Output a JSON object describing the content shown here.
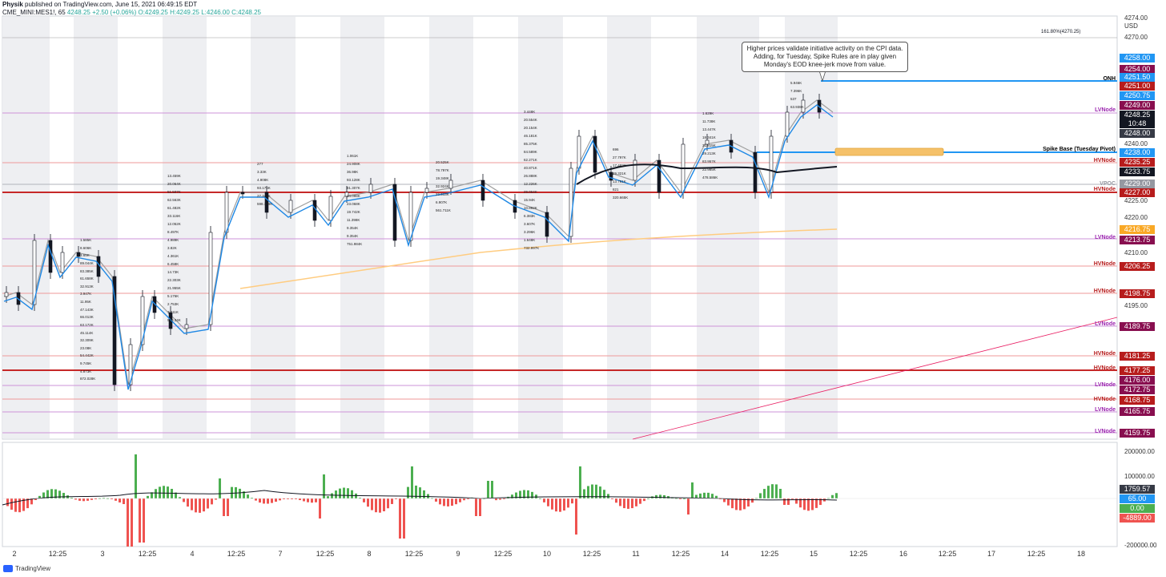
{
  "header": {
    "publisher": "Physik",
    "published_text": "published on TradingView.com, June 15, 2021 06:49:15 EDT",
    "symbol": "CME_MINI:MES1!, 65",
    "last": "4248.25",
    "change": "+2.50 (+0.06%)",
    "open": "O:4249.25",
    "high": "H:4249.25",
    "low": "L:4246.00",
    "close": "C:4248.25"
  },
  "price_axis": {
    "currency": "USD",
    "ticks": [
      "4270.00",
      "4240.00",
      "4225.00",
      "4220.00",
      "4210.00",
      "4195.00"
    ],
    "top_tick": "4274.00"
  },
  "fib_label": "161.80%(4270.25)",
  "annotation": "Higher prices validate initiative activity on the CPI data. Adding, for Tuesday, Spike Rules are in play given Monday's EOD knee-jerk move from value.",
  "levels": [
    {
      "name": "ONH",
      "color": "#000000"
    },
    {
      "name": "LVNode",
      "color": "#9c27b0"
    },
    {
      "name": "Spike Base (Tuesday Pivot)",
      "color": "#000000"
    },
    {
      "name": "HVNode",
      "color": "#b71c1c"
    },
    {
      "name": "VPOC",
      "color": "#9598a1"
    },
    {
      "name": "HVNode",
      "color": "#b71c1c"
    },
    {
      "name": "LVNode",
      "color": "#9c27b0"
    },
    {
      "name": "HVNode",
      "color": "#b71c1c"
    },
    {
      "name": "HVNode",
      "color": "#b71c1c"
    },
    {
      "name": "LVNode",
      "color": "#9c27b0"
    },
    {
      "name": "HVNode",
      "color": "#b71c1c"
    },
    {
      "name": "HVNode",
      "color": "#b71c1c"
    },
    {
      "name": "LVNode",
      "color": "#9c27b0"
    },
    {
      "name": "HVNode",
      "color": "#b71c1c"
    },
    {
      "name": "LVNode",
      "color": "#9c27b0"
    },
    {
      "name": "LVNode",
      "color": "#9c27b0"
    }
  ],
  "price_tags": [
    {
      "text": "4258.00",
      "color": "#2196f3"
    },
    {
      "text": "4254.00",
      "color": "#880e4f"
    },
    {
      "text": "4251.50",
      "color": "#2196f3"
    },
    {
      "text": "4251.00",
      "color": "#b71c1c"
    },
    {
      "text": "4250.75",
      "color": "#2196f3"
    },
    {
      "text": "4249.00",
      "color": "#880e4f"
    },
    {
      "text": "4248.25",
      "color": "#131722"
    },
    {
      "text": "10:48",
      "color": "#131722"
    },
    {
      "text": "4248.00",
      "color": "#363a45"
    },
    {
      "text": "4238.00",
      "color": "#2196f3"
    },
    {
      "text": "4235.25",
      "color": "#b71c1c"
    },
    {
      "text": "4233.75",
      "color": "#131722"
    },
    {
      "text": "4229.00",
      "color": "#9598a1"
    },
    {
      "text": "4227.00",
      "color": "#b71c1c"
    },
    {
      "text": "4216.75",
      "color": "#f9a825"
    },
    {
      "text": "4213.75",
      "color": "#880e4f"
    },
    {
      "text": "4206.25",
      "color": "#b71c1c"
    },
    {
      "text": "4198.75",
      "color": "#b71c1c"
    },
    {
      "text": "4189.75",
      "color": "#880e4f"
    },
    {
      "text": "4181.25",
      "color": "#b71c1c"
    },
    {
      "text": "4177.25",
      "color": "#b71c1c"
    },
    {
      "text": "4176.00",
      "color": "#880e4f"
    },
    {
      "text": "4172.75",
      "color": "#880e4f"
    },
    {
      "text": "4168.75",
      "color": "#b71c1c"
    },
    {
      "text": "4165.75",
      "color": "#880e4f"
    },
    {
      "text": "4159.75",
      "color": "#880e4f"
    }
  ],
  "volume_axis": [
    "200000.00",
    "100000.00",
    "-200000.00"
  ],
  "volume_tags": [
    {
      "text": "1759.57",
      "color": "#363a45"
    },
    {
      "text": "65.00",
      "color": "#2196f3"
    },
    {
      "text": "0.00",
      "color": "#4caf50"
    },
    {
      "text": "-4889.00",
      "color": "#ef5350"
    }
  ],
  "time_axis": [
    "2",
    "12:25",
    "3",
    "12:25",
    "4",
    "12:25",
    "7",
    "12:25",
    "8",
    "12:25",
    "9",
    "12:25",
    "10",
    "12:25",
    "11",
    "12:25",
    "14",
    "12:25",
    "15",
    "12:25",
    "16",
    "12:25",
    "17",
    "12:25",
    "18"
  ],
  "volume_profile_labels": [
    [
      "1.585K",
      "8.606K",
      "3.65K",
      "89.044K",
      "83.385K",
      "61.658K",
      "32.913K",
      "3.947K",
      "11.95K",
      "47.143K",
      "66.013K",
      "63.172K",
      "45.114K",
      "32.309K",
      "23.08K",
      "54.442K",
      "9.745K",
      "4.873K",
      "872.028K"
    ],
    [
      "13.459K",
      "20.064K",
      "51.507K",
      "62.563K",
      "61.482K",
      "33.116K",
      "12.052K",
      "8.497K",
      "4.989K",
      "3.82K",
      "4.361K",
      "6.458K",
      "14.73K",
      "22.303K",
      "21.955K",
      "5.176K",
      "2.753K",
      "7.211K",
      "570.34K"
    ],
    [
      "277",
      "3.33K",
      "4.908K",
      "93.176K",
      "27.344K",
      "598.108K"
    ],
    [
      "1.061K",
      "24.908K",
      "36.98K",
      "93.128K",
      "81.307K",
      "24.098K",
      "23.068K",
      "19.742K",
      "11.398K",
      "9.354K",
      "9.354K",
      "751.984K"
    ],
    [
      "20.525K",
      "78.797K",
      "19.348K",
      "32.924K",
      "22.513K",
      "6.907K",
      "561.711K"
    ],
    [
      "3.448K",
      "20.554K",
      "20.154K",
      "46.181K",
      "85.375K",
      "84.589K",
      "62.271K",
      "40.871K",
      "26.888K",
      "12.226K",
      "29.064K",
      "15.94K",
      "10.892K",
      "6.383K",
      "3.607K",
      "3.296K",
      "1.648K",
      "732.997K"
    ],
    [
      "696",
      "27.797K",
      "17.482K",
      "29.321K",
      "13.761K",
      "821",
      "320.665K"
    ],
    [
      "1.629K",
      "11.738K",
      "13.447K",
      "18.341K",
      "31.815K",
      "29.213K",
      "83.957K",
      "22.985K",
      "478.586K"
    ],
    [
      "5.946K",
      "7.396K",
      "537",
      "63.938K"
    ]
  ],
  "footer": {
    "brand": "TradingView"
  }
}
